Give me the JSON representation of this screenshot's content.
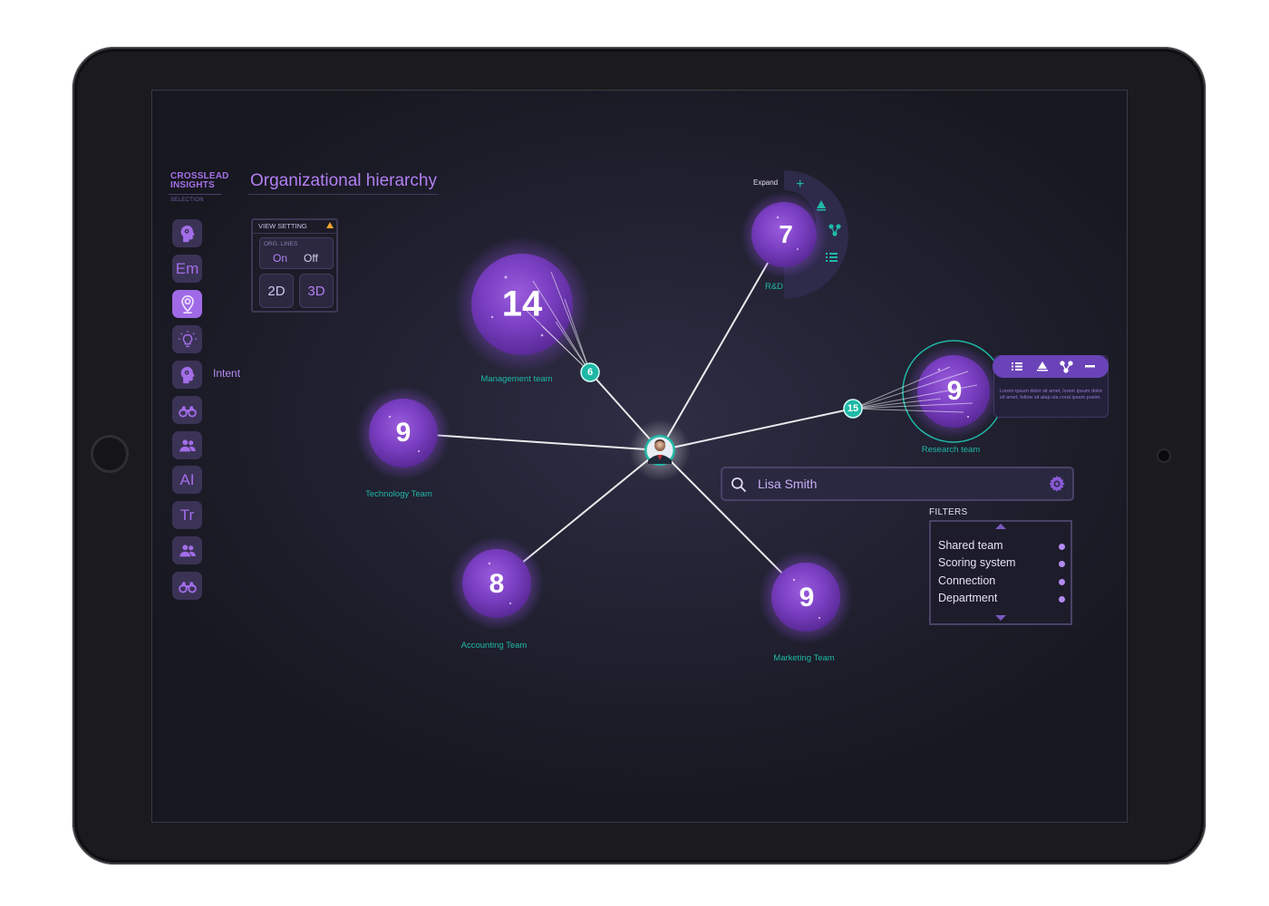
{
  "brand": {
    "line1": "CROSSLEAD",
    "line2": "INSIGHTS",
    "sub": "SELECTION"
  },
  "page_title": "Organizational hierarchy",
  "sidebar": {
    "items": [
      {
        "icon": "head-gear-icon",
        "label": ""
      },
      {
        "icon": "text",
        "label": "Em"
      },
      {
        "icon": "location-pin-icon",
        "label": "",
        "active": true
      },
      {
        "icon": "lightbulb-icon",
        "label": ""
      },
      {
        "icon": "head-gear-icon",
        "label": "",
        "tooltip": "Intent"
      },
      {
        "icon": "binoculars-icon",
        "label": ""
      },
      {
        "icon": "people-icon",
        "label": ""
      },
      {
        "icon": "text",
        "label": "AI"
      },
      {
        "icon": "text",
        "label": "Tr"
      },
      {
        "icon": "people-icon",
        "label": ""
      },
      {
        "icon": "binoculars-icon",
        "label": ""
      }
    ],
    "hover_label": "Intent"
  },
  "view_setting": {
    "title": "VIEW SETTING",
    "org_lines_label": "ORG. LINES",
    "on_label": "On",
    "off_label": "Off",
    "btn_2d": "2D",
    "btn_3d": "3D"
  },
  "nodes": [
    {
      "id": "management",
      "count": "14",
      "label": "Management team",
      "connectors": "6"
    },
    {
      "id": "rnd",
      "count": "7",
      "label": "R&D"
    },
    {
      "id": "research",
      "count": "9",
      "label": "Research team",
      "connectors": "15"
    },
    {
      "id": "technology",
      "count": "9",
      "label": "Technology Team"
    },
    {
      "id": "accounting",
      "count": "8",
      "label": "Accounting Team"
    },
    {
      "id": "marketing",
      "count": "9",
      "label": "Marketing Team"
    }
  ],
  "radial_menu": {
    "expand_label": "Expand"
  },
  "tooltip": {
    "text": "Lorem ipsum dolor sit amet, lorem ipsum dolor sit amet, fellow sit atap ula coral ipsam pusim."
  },
  "search": {
    "value": "Lisa Smith",
    "placeholder": "Search"
  },
  "filters": {
    "title": "FILTERS",
    "items": [
      "Shared team",
      "Scoring system",
      "Connection",
      "Department"
    ]
  },
  "colors": {
    "accent": "#a06ae6",
    "teal": "#1fb8a6",
    "background": "#1d1d29"
  }
}
